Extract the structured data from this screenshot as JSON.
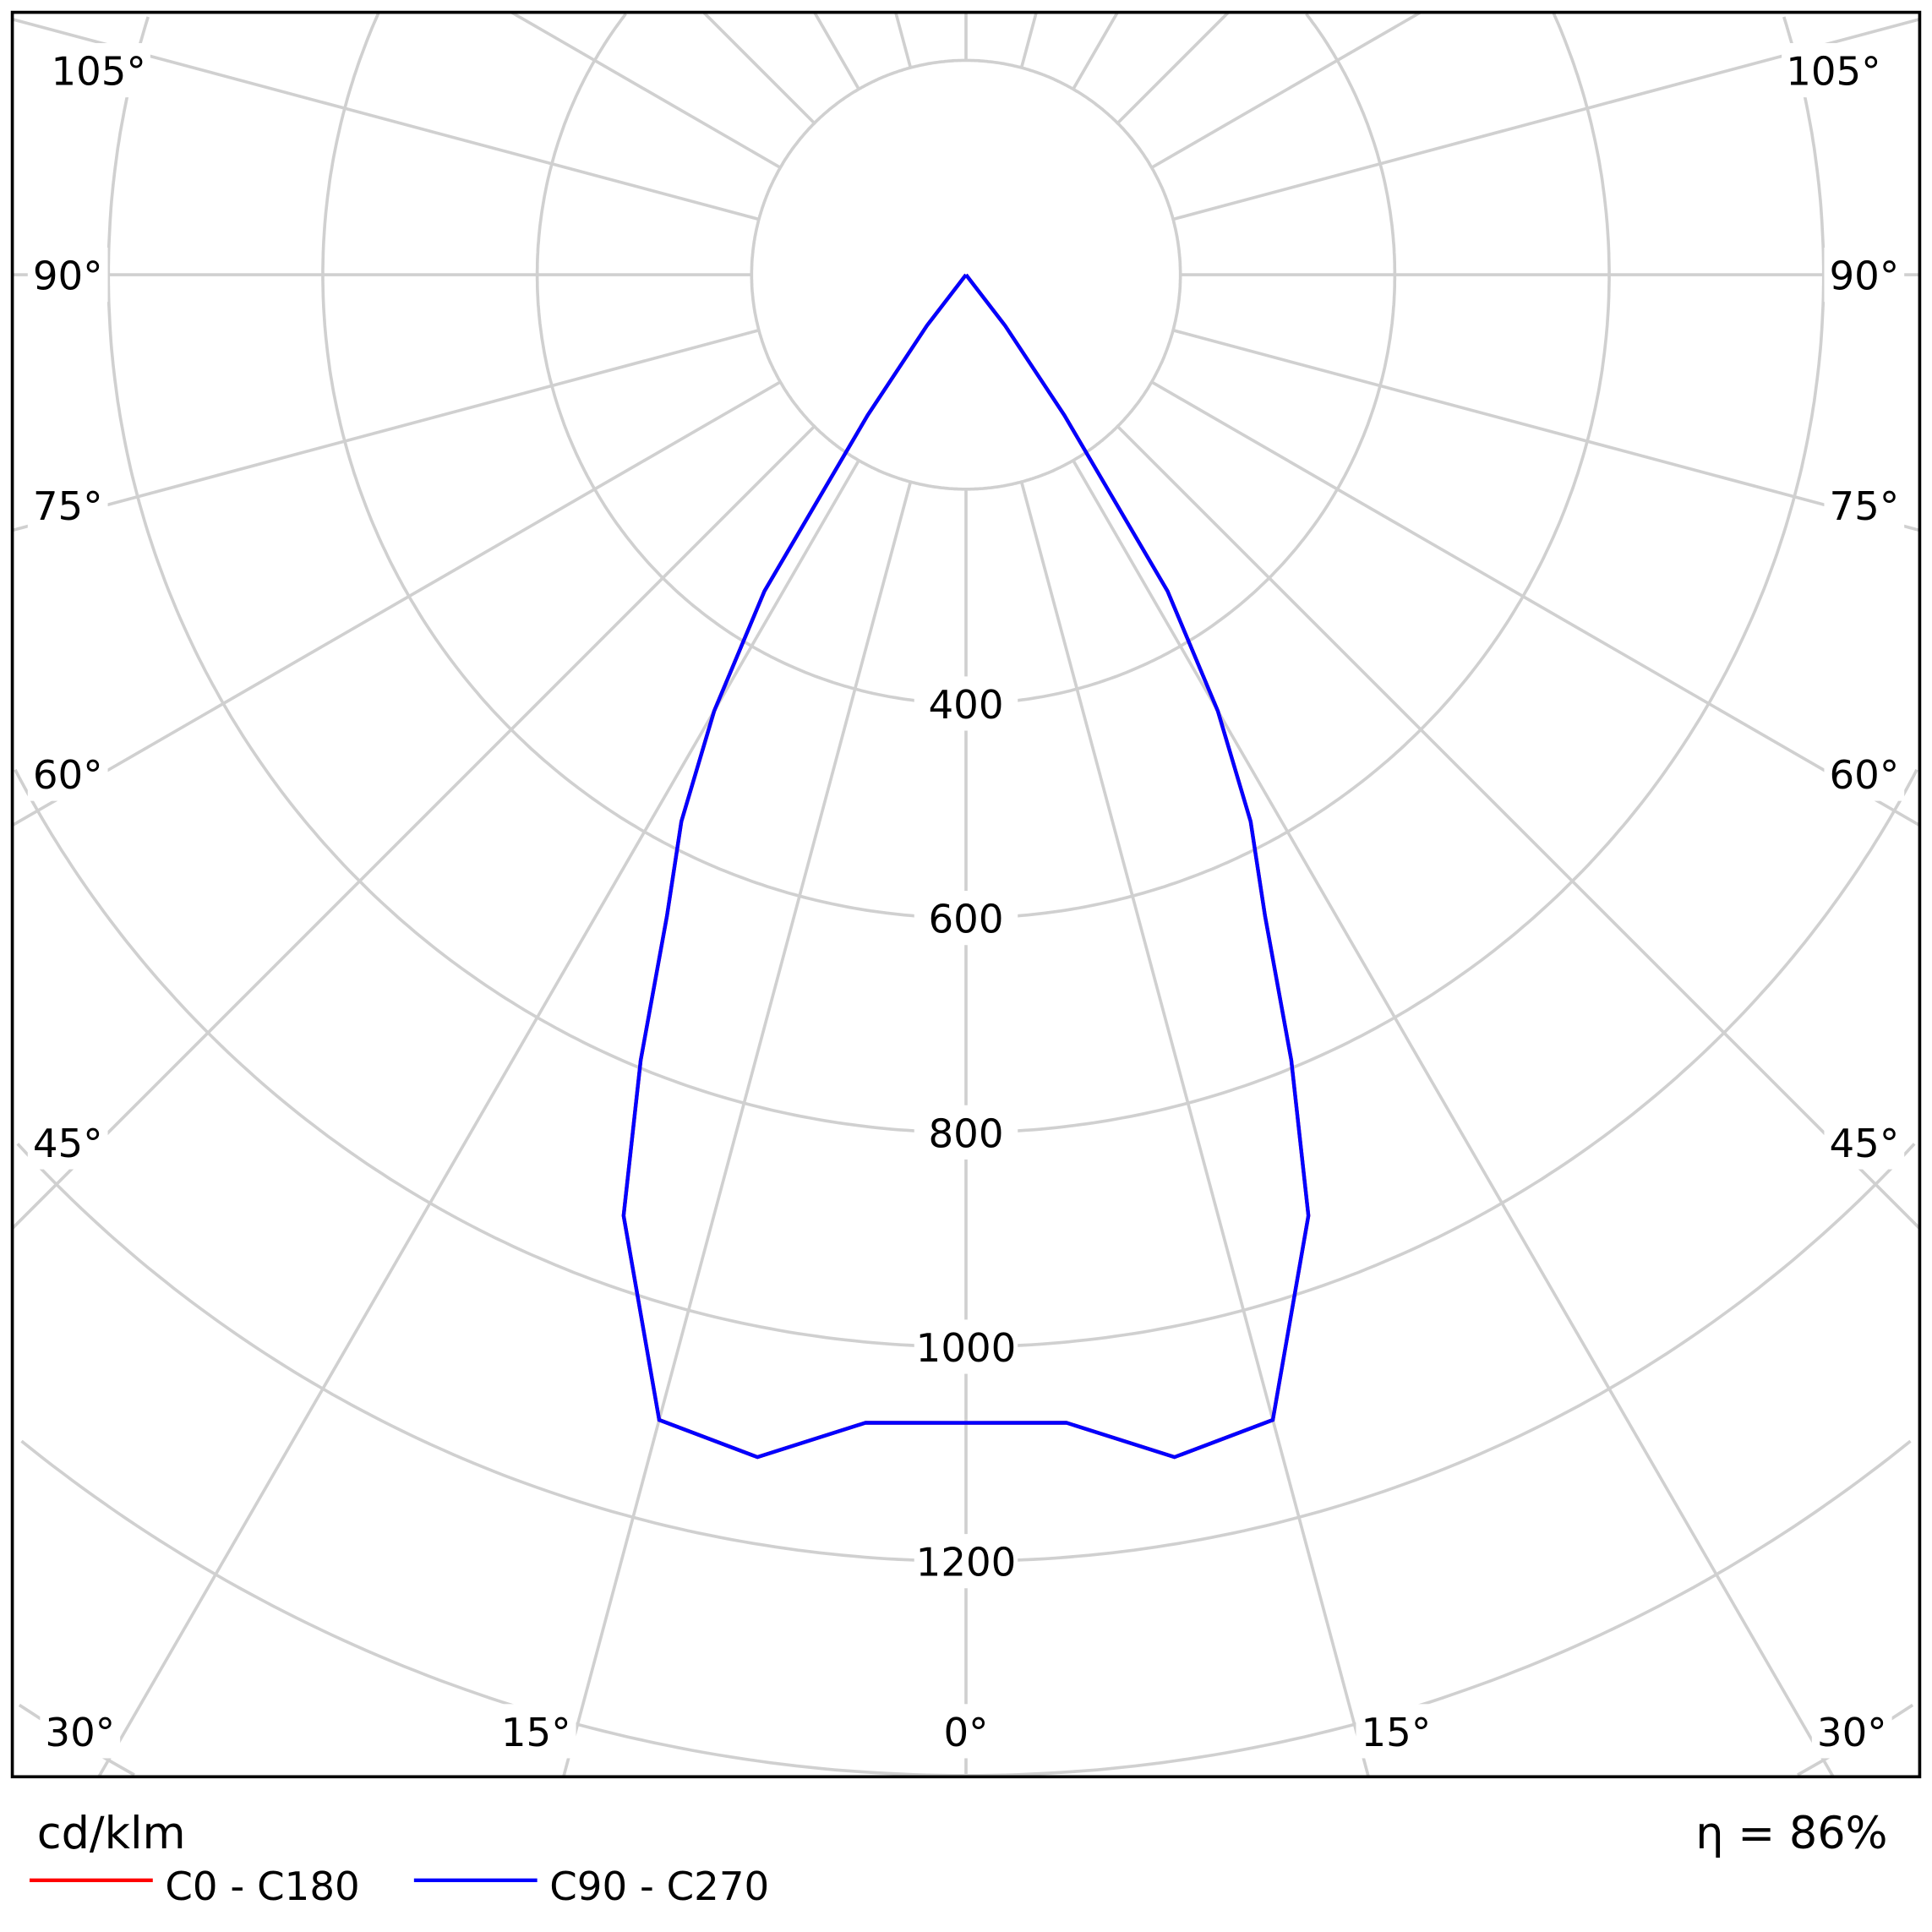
{
  "chart_data": {
    "type": "polar",
    "unit_label": "cd/klm",
    "efficiency_label": "η = 86%",
    "radial_ticks": [
      400,
      600,
      800,
      1000,
      1200
    ],
    "radial_grid_step": 200,
    "radial_range": [
      0,
      1800
    ],
    "angle_tick_labels": [
      {
        "label": "0°",
        "angle": 0
      },
      {
        "label": "15°",
        "angle": -15
      },
      {
        "label": "15°",
        "angle": 15
      },
      {
        "label": "30°",
        "angle": -30
      },
      {
        "label": "30°",
        "angle": 30
      },
      {
        "label": "45°",
        "angle": -45
      },
      {
        "label": "45°",
        "angle": 45
      },
      {
        "label": "60°",
        "angle": -60
      },
      {
        "label": "60°",
        "angle": 60
      },
      {
        "label": "75°",
        "angle": -75
      },
      {
        "label": "75°",
        "angle": 75
      },
      {
        "label": "90°",
        "angle": -90
      },
      {
        "label": "90°",
        "angle": 90
      },
      {
        "label": "105°",
        "angle": -105
      },
      {
        "label": "105°",
        "angle": 105
      }
    ],
    "grid": true,
    "legend_placement": "bottom-left",
    "series": [
      {
        "name": "C0 - C180",
        "color": "#ff0000",
        "gamma": [
          0,
          5,
          10,
          15,
          20,
          22.5,
          25,
          27.5,
          30,
          32.5,
          35,
          37.5,
          40
        ],
        "values": [
          1071,
          1075,
          1120,
          1106,
          934,
          793,
          660,
          575,
          470,
          350,
          160,
          60,
          0
        ]
      },
      {
        "name": "C90 - C270",
        "color": "#0000ff",
        "gamma": [
          0,
          5,
          10,
          15,
          20,
          22.5,
          25,
          27.5,
          30,
          32.5,
          35,
          37.5,
          40
        ],
        "values": [
          1071,
          1075,
          1120,
          1106,
          934,
          793,
          660,
          575,
          470,
          350,
          160,
          60,
          0
        ]
      }
    ]
  }
}
